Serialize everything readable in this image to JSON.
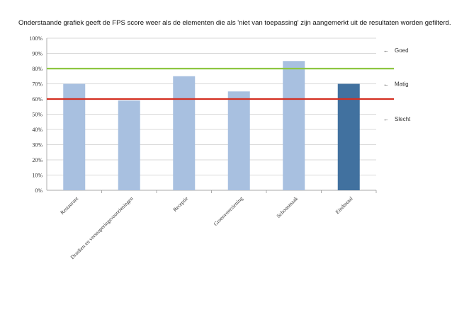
{
  "intro_text": "Onderstaande grafiek geeft de FPS score weer als de elementen die als 'niet van toepassing' zijn aangemerkt uit de resultaten worden gefilterd.",
  "chart_data": {
    "type": "bar",
    "categories": [
      "Restaurant",
      "Dranken en versnaperingsvoorzieningen",
      "Receptie",
      "Groenvoorziening",
      "Schoonmaak",
      "Eindtotaal"
    ],
    "values": [
      70,
      59,
      75,
      65,
      85,
      70
    ],
    "ylim": [
      0,
      100
    ],
    "y_ticks": [
      "0%",
      "10%",
      "20%",
      "30%",
      "40%",
      "50%",
      "60%",
      "70%",
      "80%",
      "90%",
      "100%"
    ],
    "grid": true,
    "reference_lines": [
      {
        "value": 80,
        "color": "#8dc641"
      },
      {
        "value": 60,
        "color": "#d42f21"
      }
    ],
    "annotations": [
      {
        "label": "Goed",
        "value": 92
      },
      {
        "label": "Matig",
        "value": 70
      },
      {
        "label": "Slecht",
        "value": 47
      }
    ],
    "colors": {
      "bar": "#a8c0e0",
      "highlight_bar": "#41719f",
      "grid": "#cccccc"
    },
    "highlight_index": 5
  }
}
